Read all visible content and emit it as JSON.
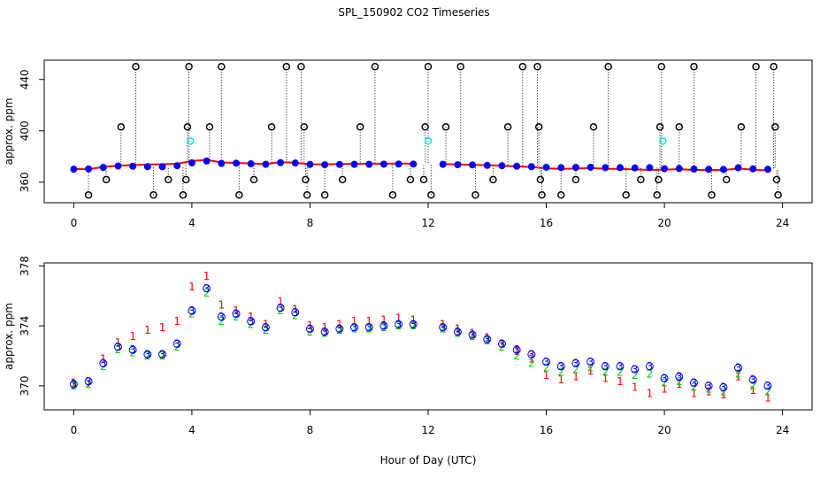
{
  "chart_data": [
    {
      "type": "scatter",
      "title": "SPL_150902  CO2 Timeseries",
      "y_label": "approx. ppm",
      "xlim": [
        -1,
        25
      ],
      "xticks": [
        0,
        4,
        8,
        12,
        16,
        20,
        24
      ],
      "ylim": [
        344,
        455
      ],
      "yticks": [
        360,
        400,
        440
      ],
      "x": [
        0,
        0.5,
        1,
        1.5,
        2,
        2.5,
        3,
        3.5,
        4,
        4.5,
        5,
        5.5,
        6,
        6.5,
        7,
        7.5,
        8,
        8.5,
        9,
        9.5,
        10,
        10.5,
        11,
        11.5,
        12,
        12.5,
        13,
        13.5,
        14,
        14.5,
        15,
        15.5,
        16,
        16.5,
        17,
        17.5,
        18,
        18.5,
        19,
        19.5,
        20,
        20.5,
        21,
        21.5,
        22,
        22.5,
        23,
        23.5
      ],
      "series": [
        {
          "color": "#ff0000",
          "mode": "line",
          "values": [
            370.2,
            370.1,
            371.8,
            372.9,
            373.3,
            373.7,
            373.9,
            374.3,
            376.6,
            377.3,
            375.4,
            375.0,
            374.6,
            374.1,
            375.6,
            375.1,
            374.0,
            373.9,
            374.1,
            374.3,
            374.3,
            374.4,
            374.5,
            374.4,
            null,
            374.1,
            373.8,
            373.5,
            373.2,
            372.8,
            372.3,
            371.8,
            370.7,
            370.4,
            370.6,
            371.0,
            370.5,
            370.3,
            369.9,
            369.5,
            369.8,
            370.1,
            369.5,
            369.6,
            369.4,
            370.6,
            369.7,
            369.2
          ]
        },
        {
          "color": "#0000ff",
          "mode": "points",
          "values": [
            370.1,
            370.3,
            371.5,
            372.6,
            372.4,
            372.1,
            372.1,
            372.8,
            375.0,
            376.5,
            374.6,
            374.8,
            374.3,
            373.9,
            375.2,
            374.9,
            373.8,
            373.6,
            373.8,
            373.9,
            373.9,
            374.0,
            374.1,
            374.1,
            null,
            373.9,
            373.6,
            373.4,
            373.1,
            372.8,
            372.4,
            372.1,
            371.6,
            371.3,
            371.5,
            371.6,
            371.3,
            371.3,
            371.1,
            371.3,
            370.5,
            370.6,
            370.2,
            370.0,
            369.9,
            371.2,
            370.4,
            370.0
          ]
        }
      ],
      "highlights": {
        "color": "#00e5ee",
        "x": [
          3.95,
          12.0,
          19.95
        ],
        "values": [
          392,
          392,
          392
        ]
      },
      "outliers": {
        "color": "#000000",
        "x": [
          0.5,
          1.1,
          1.6,
          2.1,
          2.7,
          3.2,
          3.7,
          3.8,
          3.85,
          3.9,
          4.6,
          5.0,
          5.6,
          6.1,
          6.7,
          7.2,
          7.7,
          7.8,
          7.85,
          7.9,
          8.5,
          9.1,
          9.7,
          10.2,
          10.8,
          11.4,
          11.85,
          11.9,
          12.0,
          12.1,
          12.6,
          13.1,
          13.6,
          14.2,
          14.7,
          15.2,
          15.7,
          15.75,
          15.8,
          15.85,
          16.5,
          17.0,
          17.6,
          18.1,
          18.7,
          19.2,
          19.75,
          19.8,
          19.85,
          19.9,
          20.5,
          21.0,
          21.6,
          22.1,
          22.6,
          23.1,
          23.7,
          23.75,
          23.8,
          23.85
        ],
        "values": [
          350,
          362,
          403,
          450,
          350,
          362,
          350,
          362,
          403,
          450,
          403,
          450,
          350,
          362,
          403,
          450,
          450,
          403,
          362,
          350,
          350,
          362,
          403,
          450,
          350,
          362,
          362,
          403,
          450,
          350,
          403,
          450,
          350,
          362,
          403,
          450,
          450,
          403,
          362,
          350,
          350,
          362,
          403,
          450,
          350,
          362,
          350,
          362,
          403,
          450,
          403,
          450,
          350,
          362,
          403,
          450,
          450,
          403,
          362,
          350
        ]
      }
    },
    {
      "type": "scatter",
      "y_label": "approx. ppm",
      "x_label": "Hour of Day (UTC)",
      "xlim": [
        -1,
        25
      ],
      "xticks": [
        0,
        4,
        8,
        12,
        16,
        20,
        24
      ],
      "ylim": [
        368.4,
        378.2
      ],
      "yticks": [
        370,
        374,
        378
      ],
      "x": [
        0,
        0.5,
        1,
        1.5,
        2,
        2.5,
        3,
        3.5,
        4,
        4.5,
        5,
        5.5,
        6,
        6.5,
        7,
        7.5,
        8,
        8.5,
        9,
        9.5,
        10,
        10.5,
        11,
        11.5,
        12,
        12.5,
        13,
        13.5,
        14,
        14.5,
        15,
        15.5,
        16,
        16.5,
        17,
        17.5,
        18,
        18.5,
        19,
        19.5,
        20,
        20.5,
        21,
        21.5,
        22,
        22.5,
        23,
        23.5
      ],
      "series": [
        {
          "color": "#ff0000",
          "symbol": "1",
          "circles": false,
          "values": [
            370.2,
            370.1,
            371.8,
            372.9,
            373.3,
            373.7,
            373.9,
            374.3,
            376.6,
            377.3,
            375.4,
            375.0,
            374.6,
            374.1,
            375.6,
            375.1,
            374.0,
            373.9,
            374.1,
            374.3,
            374.3,
            374.4,
            374.5,
            374.4,
            null,
            374.1,
            373.8,
            373.5,
            373.2,
            372.8,
            372.3,
            371.8,
            370.7,
            370.4,
            370.6,
            371.0,
            370.5,
            370.3,
            369.9,
            369.5,
            369.8,
            370.1,
            369.5,
            369.6,
            369.4,
            370.6,
            369.7,
            369.2
          ]
        },
        {
          "color": "#00cd00",
          "symbol": "2",
          "circles": false,
          "values": [
            370.0,
            370.1,
            371.3,
            372.4,
            372.2,
            372.0,
            372.0,
            372.6,
            374.8,
            376.2,
            374.3,
            374.6,
            374.1,
            373.7,
            375.0,
            374.7,
            373.6,
            373.5,
            373.7,
            373.8,
            373.8,
            373.9,
            374.0,
            374.0,
            null,
            373.8,
            373.5,
            373.3,
            373.0,
            372.6,
            372.0,
            371.5,
            371.2,
            370.9,
            371.1,
            371.2,
            370.9,
            370.9,
            370.7,
            370.8,
            370.2,
            370.3,
            369.9,
            369.8,
            369.6,
            370.8,
            370.0,
            369.6
          ]
        },
        {
          "color": "#0000ff",
          "symbol": "3",
          "circles": true,
          "values": [
            370.1,
            370.3,
            371.5,
            372.6,
            372.4,
            372.1,
            372.1,
            372.8,
            375.0,
            376.5,
            374.6,
            374.8,
            374.3,
            373.9,
            375.2,
            374.9,
            373.8,
            373.6,
            373.8,
            373.9,
            373.9,
            374.0,
            374.1,
            374.1,
            null,
            373.9,
            373.6,
            373.4,
            373.1,
            372.8,
            372.4,
            372.1,
            371.6,
            371.3,
            371.5,
            371.6,
            371.3,
            371.3,
            371.1,
            371.3,
            370.5,
            370.6,
            370.2,
            370.0,
            369.9,
            371.2,
            370.4,
            370.0
          ]
        }
      ]
    }
  ]
}
